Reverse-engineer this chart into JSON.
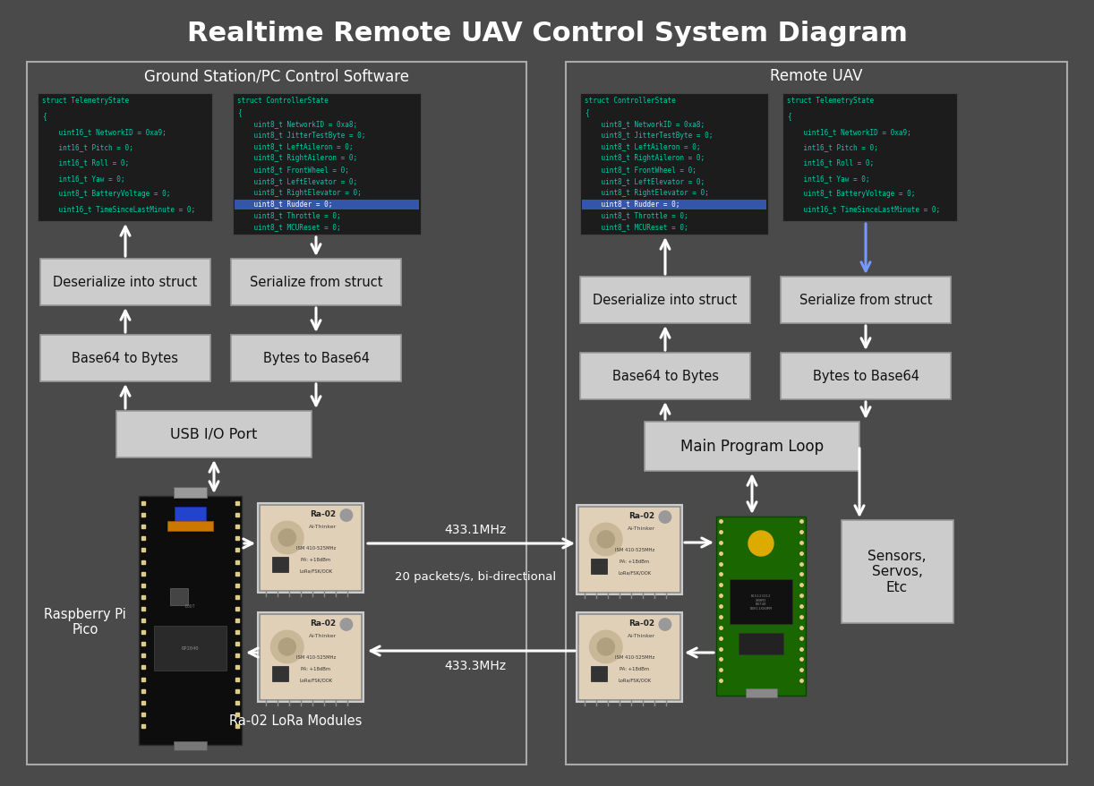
{
  "title": "Realtime Remote UAV Control System Diagram",
  "bg_color": "#4a4a4a",
  "box_bg": "#cccccc",
  "box_text_color": "#111111",
  "text_color": "#ffffff",
  "code_bg": "#1c1c1c",
  "border_color": "#aaaaaa",
  "arrow_color": "#ffffff",
  "blue_arrow": "#7799ff",
  "left_panel_label": "Ground Station/PC Control Software",
  "right_panel_label": "Remote UAV",
  "freq_top": "433.1MHz",
  "freq_bottom": "433.3MHz",
  "freq_mid": "20 packets/s, bi-directional",
  "rpi_label": "Raspberry Pi\nPico",
  "lora_label": "Ra-02 LoRa Modules",
  "sensors_label": "Sensors,\nServos,\nEtc",
  "main_loop_label": "Main Program Loop",
  "tel_code": [
    "struct TelemetryState",
    "{",
    "    uint16_t NetworkID = 0xa9;",
    "    int16_t Pitch = 0;",
    "    int16_t Roll = 0;",
    "    int16_t Yaw = 0;",
    "    uint8_t BatteryVoltage = 0;",
    "    uint16_t TimeSinceLastMinute = 0;"
  ],
  "ctrl_code": [
    "struct ControllerState",
    "{",
    "    uint8_t NetworkID = 0xa8;",
    "    uint8_t JitterTestByte = 0;",
    "    uint8_t LeftAileron = 0;",
    "    uint8_t RightAileron = 0;",
    "    uint8_t FrontWheel = 0;",
    "    uint8_t LeftElevator = 0;",
    "    uint8_t RightElevator = 0;",
    "    uint8_t Rudder = 0;",
    "    uint8_t Throttle = 0;",
    "    uint8_t MCUReset = 0;"
  ]
}
